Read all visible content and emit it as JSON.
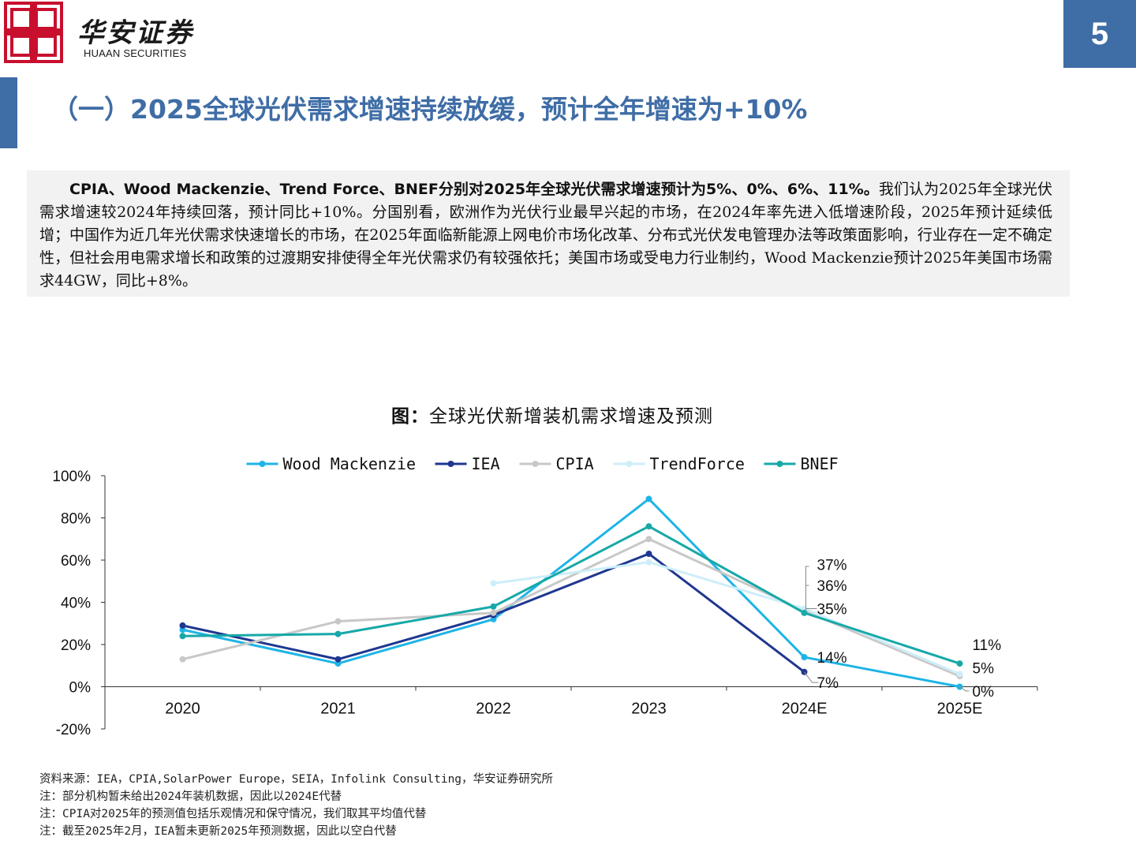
{
  "header": {
    "logo_cn": "华安证券",
    "logo_en": "HUAAN SECURITIES",
    "page_number": "5",
    "brand_color": "#3f6da6",
    "logo_color": "#c8102e"
  },
  "title": "（一）2025全球光伏需求增速持续放缓，预计全年增速为+10%",
  "summary": {
    "bold_part": "CPIA、Wood Mackenzie、Trend Force、BNEF分别对2025年全球光伏需求增速预计为5%、0%、6%、11%。",
    "rest": "我们认为2025年全球光伏需求增速较2024年持续回落，预计同比+10%。分国别看，欧洲作为光伏行业最早兴起的市场，在2024年率先进入低增速阶段，2025年预计延续低增；中国作为近几年光伏需求快速增长的市场，在2025年面临新能源上网电价市场化改革、分布式光伏发电管理办法等政策面影响，行业存在一定不确定性，但社会用电需求增长和政策的过渡期安排使得全年光伏需求仍有较强依托；美国市场或受电力行业制约，Wood Mackenzie预计2025年美国市场需求44GW，同比+8%。"
  },
  "chart_title": {
    "prefix": "图：",
    "text": "全球光伏新增装机需求增速及预测"
  },
  "chart_data": {
    "type": "line",
    "categories": [
      "2020",
      "2021",
      "2022",
      "2023",
      "2024E",
      "2025E"
    ],
    "ylim": [
      -20,
      100
    ],
    "yticks": [
      -20,
      0,
      20,
      40,
      60,
      80,
      100
    ],
    "ytick_labels": [
      "-20%",
      "0%",
      "20%",
      "40%",
      "60%",
      "80%",
      "100%"
    ],
    "legend_position": "top",
    "series": [
      {
        "name": "Wood Mackenzie",
        "color": "#1eb4e6",
        "values": [
          27,
          11,
          32,
          89,
          14,
          0
        ]
      },
      {
        "name": "IEA",
        "color": "#1f3790",
        "values": [
          29,
          13,
          34,
          63,
          7,
          null
        ]
      },
      {
        "name": "CPIA",
        "color": "#c8c8c8",
        "values": [
          13,
          31,
          35,
          70,
          36,
          5
        ]
      },
      {
        "name": "TrendForce",
        "color": "#cdeefa",
        "values": [
          null,
          null,
          49,
          59,
          37,
          6
        ]
      },
      {
        "name": "BNEF",
        "color": "#17a8a8",
        "values": [
          24,
          25,
          38,
          76,
          35,
          11
        ]
      }
    ],
    "annotations": [
      {
        "text": "37%",
        "x": "2024E",
        "y": 58
      },
      {
        "text": "36%",
        "x": "2024E",
        "y": 48
      },
      {
        "text": "35%",
        "x": "2024E",
        "y": 37
      },
      {
        "text": "14%",
        "x": "2024E",
        "y": 14
      },
      {
        "text": "7%",
        "x": "2024E",
        "y": 2
      },
      {
        "text": "11%",
        "x": "2025E",
        "y": 20
      },
      {
        "text": "5%",
        "x": "2025E",
        "y": 9
      },
      {
        "text": "0%",
        "x": "2025E",
        "y": -2
      }
    ]
  },
  "notes": [
    "资料来源：IEA，CPIA,SolarPower Europe，SEIA，Infolink Consulting，华安证券研究所",
    "注：部分机构暂未给出2024年装机数据，因此以2024E代替",
    "注：CPIA对2025年的预测值包括乐观情况和保守情况，我们取其平均值代替",
    "注：截至2025年2月，IEA暂未更新2025年预测数据，因此以空白代替"
  ]
}
